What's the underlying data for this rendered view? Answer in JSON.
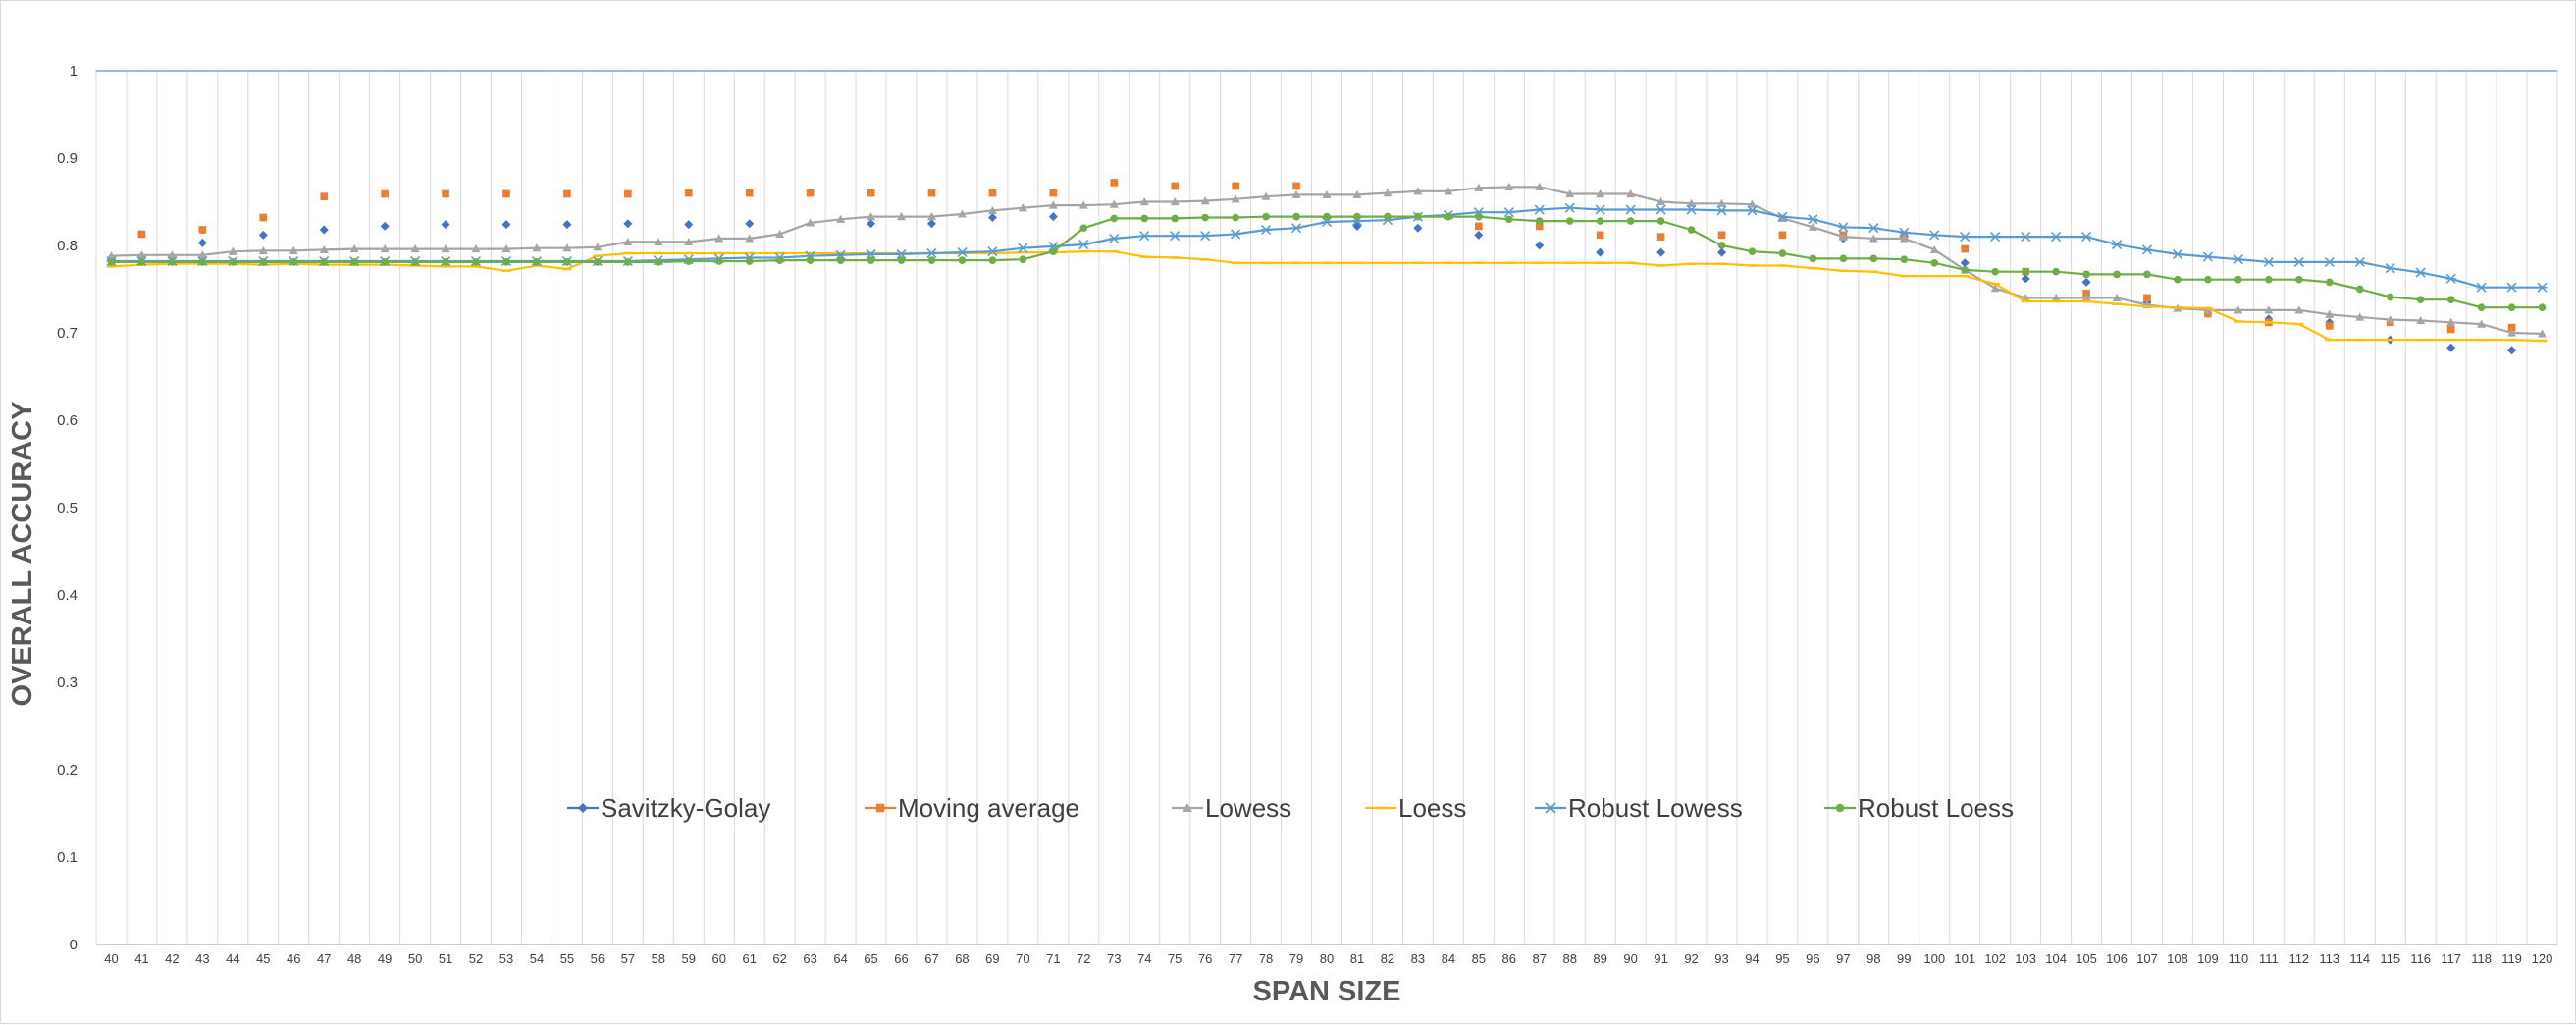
{
  "chart_data": {
    "type": "line",
    "title": "",
    "xlabel": "SPAN SIZE",
    "ylabel": "OVERALL ACCURACY",
    "ylim": [
      0,
      1
    ],
    "yticks": [
      "0",
      "0.1",
      "0.2",
      "0.3",
      "0.4",
      "0.5",
      "0.6",
      "0.7",
      "0.8",
      "0.9",
      "1"
    ],
    "x": [
      40,
      41,
      42,
      43,
      44,
      45,
      46,
      47,
      48,
      49,
      50,
      51,
      52,
      53,
      54,
      55,
      56,
      57,
      58,
      59,
      60,
      61,
      62,
      63,
      64,
      65,
      66,
      67,
      68,
      69,
      70,
      71,
      72,
      73,
      74,
      75,
      76,
      77,
      78,
      79,
      80,
      81,
      82,
      83,
      84,
      85,
      86,
      87,
      88,
      89,
      90,
      91,
      92,
      93,
      94,
      95,
      96,
      97,
      98,
      99,
      100,
      101,
      102,
      103,
      104,
      105,
      106,
      107,
      108,
      109,
      110,
      111,
      112,
      113,
      114,
      115,
      116,
      117,
      118,
      119,
      120
    ],
    "grid": "vertical",
    "legend_position": "bottom",
    "series": [
      {
        "name": "Savitzky-Golay",
        "color": "#4472c4",
        "marker": "diamond",
        "line": false,
        "points": [
          [
            40,
            0.784
          ],
          [
            41,
            0.787
          ],
          [
            43,
            0.803
          ],
          [
            45,
            0.812
          ],
          [
            47,
            0.818
          ],
          [
            49,
            0.822
          ],
          [
            51,
            0.824
          ],
          [
            53,
            0.824
          ],
          [
            55,
            0.824
          ],
          [
            57,
            0.825
          ],
          [
            59,
            0.824
          ],
          [
            61,
            0.825
          ],
          [
            65,
            0.825
          ],
          [
            67,
            0.825
          ],
          [
            69,
            0.832
          ],
          [
            71,
            0.833
          ],
          [
            81,
            0.822
          ],
          [
            83,
            0.82
          ],
          [
            85,
            0.812
          ],
          [
            87,
            0.8
          ],
          [
            89,
            0.792
          ],
          [
            91,
            0.792
          ],
          [
            93,
            0.792
          ],
          [
            97,
            0.808
          ],
          [
            101,
            0.78
          ],
          [
            103,
            0.762
          ],
          [
            105,
            0.758
          ],
          [
            107,
            0.735
          ],
          [
            109,
            0.722
          ],
          [
            111,
            0.716
          ],
          [
            113,
            0.712
          ],
          [
            115,
            0.692
          ],
          [
            117,
            0.683
          ],
          [
            119,
            0.68
          ]
        ]
      },
      {
        "name": "Moving average",
        "color": "#ed7d31",
        "marker": "square",
        "line": false,
        "points": [
          [
            41,
            0.813
          ],
          [
            43,
            0.818
          ],
          [
            45,
            0.832
          ],
          [
            47,
            0.856
          ],
          [
            49,
            0.859
          ],
          [
            51,
            0.859
          ],
          [
            53,
            0.859
          ],
          [
            55,
            0.859
          ],
          [
            57,
            0.859
          ],
          [
            59,
            0.86
          ],
          [
            61,
            0.86
          ],
          [
            63,
            0.86
          ],
          [
            65,
            0.86
          ],
          [
            67,
            0.86
          ],
          [
            69,
            0.86
          ],
          [
            71,
            0.86
          ],
          [
            73,
            0.872
          ],
          [
            75,
            0.868
          ],
          [
            77,
            0.868
          ],
          [
            79,
            0.868
          ],
          [
            85,
            0.822
          ],
          [
            87,
            0.822
          ],
          [
            89,
            0.812
          ],
          [
            91,
            0.81
          ],
          [
            93,
            0.812
          ],
          [
            95,
            0.812
          ],
          [
            97,
            0.812
          ],
          [
            99,
            0.812
          ],
          [
            101,
            0.796
          ],
          [
            103,
            0.77
          ],
          [
            105,
            0.745
          ],
          [
            107,
            0.74
          ],
          [
            109,
            0.722
          ],
          [
            111,
            0.712
          ],
          [
            113,
            0.708
          ],
          [
            115,
            0.712
          ],
          [
            117,
            0.704
          ],
          [
            119,
            0.706
          ]
        ]
      },
      {
        "name": "Lowess",
        "color": "#a5a5a5",
        "marker": "triangle",
        "line": true,
        "values": [
          0.788,
          0.789,
          0.789,
          0.789,
          0.793,
          0.794,
          0.794,
          0.795,
          0.796,
          0.796,
          0.796,
          0.796,
          0.796,
          0.796,
          0.797,
          0.797,
          0.798,
          0.804,
          0.804,
          0.804,
          0.808,
          0.808,
          0.813,
          0.826,
          0.83,
          0.833,
          0.833,
          0.833,
          0.836,
          0.84,
          0.843,
          0.846,
          0.846,
          0.847,
          0.85,
          0.85,
          0.851,
          0.853,
          0.856,
          0.858,
          0.858,
          0.858,
          0.86,
          0.862,
          0.862,
          0.866,
          0.867,
          0.867,
          0.859,
          0.859,
          0.859,
          0.85,
          0.848,
          0.848,
          0.847,
          0.831,
          0.821,
          0.81,
          0.808,
          0.808,
          0.795,
          0.772,
          0.751,
          0.74,
          0.74,
          0.74,
          0.74,
          0.732,
          0.728,
          0.726,
          0.726,
          0.726,
          0.726,
          0.721,
          0.718,
          0.715,
          0.714,
          0.712,
          0.71,
          0.7,
          0.699
        ]
      },
      {
        "name": "Loess",
        "color": "#ffc000",
        "marker": "dash",
        "line": true,
        "values": [
          0.776,
          0.778,
          0.779,
          0.779,
          0.779,
          0.778,
          0.779,
          0.778,
          0.778,
          0.778,
          0.777,
          0.776,
          0.776,
          0.771,
          0.777,
          0.773,
          0.788,
          0.791,
          0.791,
          0.791,
          0.791,
          0.791,
          0.791,
          0.791,
          0.791,
          0.791,
          0.791,
          0.791,
          0.791,
          0.791,
          0.792,
          0.792,
          0.793,
          0.793,
          0.787,
          0.786,
          0.784,
          0.78,
          0.78,
          0.78,
          0.78,
          0.78,
          0.78,
          0.78,
          0.78,
          0.78,
          0.78,
          0.78,
          0.78,
          0.78,
          0.78,
          0.777,
          0.779,
          0.779,
          0.777,
          0.777,
          0.774,
          0.771,
          0.77,
          0.765,
          0.765,
          0.765,
          0.756,
          0.736,
          0.736,
          0.736,
          0.733,
          0.73,
          0.729,
          0.728,
          0.713,
          0.712,
          0.71,
          0.692,
          0.692,
          0.692,
          0.692,
          0.692,
          0.692,
          0.692,
          0.691
        ]
      },
      {
        "name": "Robust Lowess",
        "color": "#5b9bd5",
        "marker": "asterisk",
        "line": true,
        "values": [
          0.782,
          0.782,
          0.782,
          0.782,
          0.782,
          0.782,
          0.782,
          0.782,
          0.782,
          0.782,
          0.782,
          0.782,
          0.782,
          0.782,
          0.782,
          0.782,
          0.782,
          0.782,
          0.783,
          0.784,
          0.785,
          0.786,
          0.786,
          0.788,
          0.789,
          0.79,
          0.79,
          0.791,
          0.792,
          0.793,
          0.797,
          0.799,
          0.801,
          0.808,
          0.811,
          0.811,
          0.811,
          0.813,
          0.818,
          0.82,
          0.827,
          0.828,
          0.829,
          0.833,
          0.835,
          0.838,
          0.838,
          0.841,
          0.843,
          0.841,
          0.841,
          0.841,
          0.841,
          0.84,
          0.84,
          0.833,
          0.83,
          0.821,
          0.82,
          0.815,
          0.812,
          0.81,
          0.81,
          0.81,
          0.81,
          0.81,
          0.801,
          0.795,
          0.79,
          0.787,
          0.784,
          0.781,
          0.781,
          0.781,
          0.781,
          0.774,
          0.769,
          0.762,
          0.752,
          0.752,
          0.752
        ]
      },
      {
        "name": "Robust Loess",
        "color": "#70ad47",
        "marker": "circle",
        "line": true,
        "values": [
          0.781,
          0.781,
          0.781,
          0.781,
          0.781,
          0.781,
          0.781,
          0.781,
          0.781,
          0.781,
          0.781,
          0.781,
          0.781,
          0.781,
          0.781,
          0.781,
          0.781,
          0.781,
          0.781,
          0.782,
          0.782,
          0.782,
          0.783,
          0.783,
          0.783,
          0.783,
          0.783,
          0.783,
          0.783,
          0.783,
          0.784,
          0.793,
          0.82,
          0.831,
          0.831,
          0.831,
          0.832,
          0.832,
          0.833,
          0.833,
          0.833,
          0.833,
          0.833,
          0.833,
          0.833,
          0.833,
          0.83,
          0.828,
          0.828,
          0.828,
          0.828,
          0.828,
          0.818,
          0.8,
          0.793,
          0.791,
          0.785,
          0.785,
          0.785,
          0.784,
          0.78,
          0.772,
          0.77,
          0.77,
          0.77,
          0.767,
          0.767,
          0.767,
          0.761,
          0.761,
          0.761,
          0.761,
          0.761,
          0.758,
          0.75,
          0.741,
          0.738,
          0.738,
          0.729,
          0.729,
          0.729
        ]
      }
    ]
  }
}
